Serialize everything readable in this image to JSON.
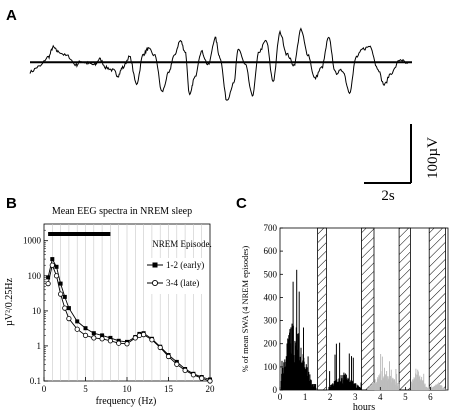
{
  "panels": {
    "a": {
      "letter": "A",
      "scalebar_time": "2s",
      "scalebar_amp": "100µV"
    },
    "b": {
      "letter": "B"
    },
    "c": {
      "letter": "C"
    }
  },
  "chart_data": [
    {
      "id": "A",
      "type": "line",
      "title": "",
      "xlabel": "",
      "ylabel": "",
      "xlim": [
        0,
        16.5
      ],
      "ylim": [
        -100,
        75
      ],
      "baseline": 0,
      "scalebar": {
        "time_s": 2,
        "amplitude_uV": 100
      },
      "series": [
        {
          "x": [
            0,
            0.4,
            0.8,
            1.0,
            1.2,
            1.6,
            2.0,
            2.2,
            2.5,
            2.8,
            3.0,
            3.3,
            3.6,
            3.8,
            4.0,
            4.3,
            4.6,
            4.9,
            5.1,
            5.4,
            5.7,
            6.0,
            6.2,
            6.5,
            6.7,
            6.9,
            7.1,
            7.4,
            7.7,
            8.0,
            8.2,
            8.5,
            8.8,
            9.0,
            9.3,
            9.6,
            9.9,
            10.2,
            10.5,
            10.8,
            11.1,
            11.4,
            11.7,
            12.0,
            12.3,
            12.6,
            12.9,
            13.2,
            13.5,
            13.8,
            14.1,
            14.4,
            14.7,
            15.0,
            15.3,
            15.6,
            16.0,
            16.3
          ],
          "y": [
            -18,
            -8,
            10,
            28,
            20,
            12,
            -5,
            2,
            -2,
            -5,
            6,
            -10,
            -15,
            -25,
            -10,
            10,
            -40,
            15,
            25,
            12,
            -55,
            -20,
            10,
            40,
            20,
            -62,
            -30,
            20,
            -5,
            45,
            10,
            -70,
            -40,
            25,
            -5,
            -62,
            20,
            40,
            -35,
            55,
            15,
            -5,
            60,
            15,
            -30,
            -10,
            45,
            -20,
            -15,
            -55,
            10,
            25,
            30,
            -10,
            -42,
            -20,
            5,
            -3
          ]
        }
      ]
    },
    {
      "id": "B",
      "type": "line",
      "title": "Mean EEG spectra in NREM sleep",
      "xlabel": "frequency (Hz)",
      "ylabel": "µV²/0.25Hz",
      "xlim": [
        0,
        20
      ],
      "ylim": [
        0.1,
        3000
      ],
      "yscale": "log",
      "xticks": [
        0,
        5,
        10,
        15,
        20
      ],
      "yticks": [
        0.1,
        1,
        10,
        100,
        1000
      ],
      "ytick_labels": [
        "0.1",
        "1",
        "10",
        "100",
        "1000"
      ],
      "grid": false,
      "significance_bar": [
        0.5,
        8
      ],
      "legend_title": "NREM Episode.",
      "legend_position": "right",
      "series": [
        {
          "name": "1-2 (early)",
          "marker": "filled-square",
          "x": [
            0.5,
            1,
            1.5,
            2,
            2.5,
            3,
            4,
            5,
            6,
            7,
            8,
            9,
            10,
            11,
            11.5,
            12,
            13,
            14,
            15,
            16,
            17,
            18,
            19,
            20
          ],
          "y": [
            90,
            300,
            180,
            60,
            25,
            12,
            5,
            3.2,
            2.3,
            2.0,
            1.7,
            1.4,
            1.3,
            1.8,
            2.2,
            2.3,
            1.6,
            0.95,
            0.55,
            0.35,
            0.22,
            0.16,
            0.13,
            0.11
          ]
        },
        {
          "name": "3-4 (late)",
          "marker": "open-circle",
          "x": [
            0.5,
            1,
            1.5,
            2,
            2.5,
            3,
            4,
            5,
            6,
            7,
            8,
            9,
            10,
            11,
            11.5,
            12,
            13,
            14,
            15,
            16,
            17,
            18,
            19,
            20
          ],
          "y": [
            60,
            200,
            100,
            30,
            12,
            6,
            3,
            2.0,
            1.7,
            1.6,
            1.4,
            1.2,
            1.15,
            1.7,
            2.0,
            2.1,
            1.5,
            0.9,
            0.5,
            0.3,
            0.2,
            0.15,
            0.12,
            0.1
          ]
        }
      ]
    },
    {
      "id": "C",
      "type": "area",
      "title": "",
      "xlabel": "hours",
      "ylabel": "% of mean SWA (4 NREM episodes)",
      "xlim": [
        0,
        6.7
      ],
      "ylim": [
        0,
        700
      ],
      "xticks": [
        0,
        1,
        2,
        3,
        4,
        5,
        6
      ],
      "yticks": [
        0,
        100,
        200,
        300,
        400,
        500,
        600,
        700
      ],
      "series": [
        {
          "name": "",
          "color": "#000000",
          "x_range": [
            0.05,
            3.25
          ],
          "bursts": [
            {
              "x": [
                0.05,
                1.45
              ],
              "peak_hour": 0.55,
              "level": 250,
              "max": 680
            },
            {
              "x": [
                1.95,
                3.25
              ],
              "peak_hour": 2.55,
              "level": 60,
              "max": 390
            }
          ]
        },
        {
          "name": "",
          "color": "#bdbdbd",
          "x_range": [
            3.5,
            6.6
          ],
          "bursts": [
            {
              "x": [
                3.5,
                4.75
              ],
              "peak_hour": 4.2,
              "level": 80,
              "max": 220
            },
            {
              "x": [
                5.25,
                6.0
              ],
              "peak_hour": 5.5,
              "level": 70,
              "max": 150
            },
            {
              "x": [
                6.0,
                6.6
              ],
              "peak_hour": 6.3,
              "level": 30,
              "max": 100
            }
          ]
        }
      ],
      "rem_periods_hatched": [
        [
          1.5,
          1.85
        ],
        [
          3.25,
          3.75
        ],
        [
          4.75,
          5.2
        ],
        [
          5.95,
          6.6
        ]
      ]
    }
  ]
}
